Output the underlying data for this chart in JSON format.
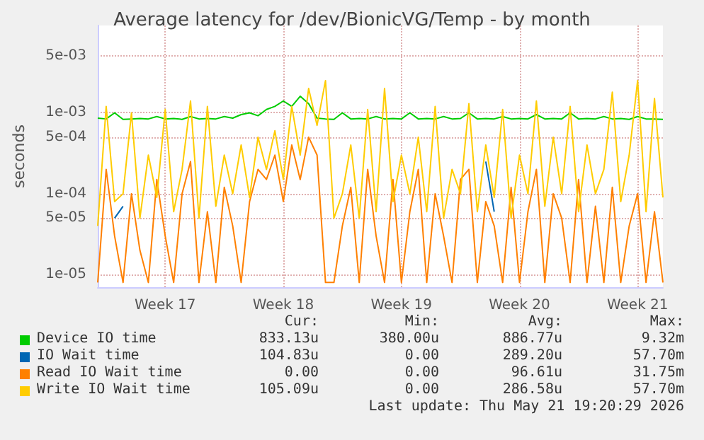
{
  "chart_data": {
    "type": "line",
    "title": "Average latency for /dev/BionicVG/Temp - by month",
    "ylabel": "seconds",
    "log": "y",
    "grid": true,
    "legend": "bottom",
    "marker": "none",
    "line_style": "solid",
    "categories": [
      null,
      null,
      null,
      null,
      null,
      null,
      null,
      null,
      "Week 17",
      null,
      null,
      null,
      null,
      null,
      null,
      null,
      null,
      null,
      null,
      null,
      null,
      null,
      "Week 18",
      null,
      null,
      null,
      null,
      null,
      null,
      null,
      null,
      null,
      null,
      null,
      null,
      null,
      "Week 19",
      null,
      null,
      null,
      null,
      null,
      null,
      null,
      null,
      null,
      null,
      null,
      null,
      null,
      "Week 20",
      null,
      null,
      null,
      null,
      null,
      null,
      null,
      null,
      null,
      null,
      null,
      null,
      null,
      "Week 21",
      null,
      null,
      null
    ],
    "ylim": [
      7e-06,
      0.012
    ],
    "yticks": [
      {
        "value": 1e-05,
        "label": "1e-05"
      },
      {
        "value": 5e-05,
        "label": "5e-05"
      },
      {
        "value": 0.0001,
        "label": "1e-04"
      },
      {
        "value": 0.0005,
        "label": "5e-04"
      },
      {
        "value": 0.001,
        "label": "1e-03"
      },
      {
        "value": 0.005,
        "label": "5e-03"
      }
    ],
    "series": [
      {
        "name": "Device IO time",
        "color": "#00cc00",
        "values": [
          0.00086,
          0.00084,
          0.001,
          0.00083,
          0.00084,
          0.00085,
          0.00084,
          0.0009,
          0.00084,
          0.00085,
          0.00083,
          0.0009,
          0.00084,
          0.00085,
          0.00084,
          0.0009,
          0.00086,
          0.00095,
          0.001,
          0.00092,
          0.0011,
          0.0012,
          0.0014,
          0.0012,
          0.0016,
          0.0013,
          0.00086,
          0.00084,
          0.00083,
          0.001,
          0.00084,
          0.00085,
          0.00084,
          0.0009,
          0.00084,
          0.00085,
          0.00084,
          0.001,
          0.00084,
          0.00085,
          0.00084,
          0.0009,
          0.00084,
          0.00085,
          0.001,
          0.00084,
          0.00085,
          0.00084,
          0.0009,
          0.00084,
          0.00085,
          0.00084,
          0.00095,
          0.00084,
          0.00085,
          0.00084,
          0.001,
          0.00084,
          0.00085,
          0.00084,
          0.0009,
          0.00084,
          0.00085,
          0.00083,
          0.0009,
          0.00084,
          0.00084,
          0.00083
        ]
      },
      {
        "name": "IO Wait time",
        "color": "#0066b3",
        "values": [
          null,
          null,
          5e-05,
          7e-05,
          null,
          null,
          null,
          null,
          null,
          null,
          null,
          null,
          null,
          null,
          null,
          null,
          null,
          null,
          null,
          null,
          null,
          null,
          null,
          null,
          null,
          null,
          null,
          null,
          null,
          null,
          null,
          null,
          null,
          null,
          null,
          null,
          null,
          null,
          null,
          null,
          null,
          null,
          null,
          null,
          null,
          null,
          0.00025,
          6e-05,
          null,
          null,
          null,
          null,
          null,
          null,
          null,
          null,
          null,
          null,
          null,
          null,
          null,
          null,
          null,
          null,
          null,
          null,
          null,
          null
        ]
      },
      {
        "name": "Read IO Wait time",
        "color": "#ff8000",
        "values": [
          8e-06,
          0.0002,
          3e-05,
          8e-06,
          0.0001,
          2e-05,
          8e-06,
          0.00015,
          3e-05,
          8e-06,
          0.0001,
          0.00025,
          8e-06,
          6e-05,
          8e-06,
          0.00012,
          4e-05,
          8e-06,
          8e-05,
          0.0002,
          0.00015,
          0.0003,
          8e-05,
          0.0004,
          0.00015,
          0.0005,
          0.0003,
          8e-06,
          8e-06,
          4e-05,
          0.00012,
          8e-06,
          0.0002,
          3e-05,
          8e-06,
          0.00015,
          8e-06,
          6e-05,
          0.0002,
          8e-06,
          0.0001,
          3e-05,
          8e-06,
          0.00015,
          0.0002,
          8e-06,
          8e-05,
          4e-05,
          8e-06,
          0.00012,
          8e-06,
          6e-05,
          0.0002,
          8e-06,
          0.0001,
          5e-05,
          8e-06,
          0.00015,
          8e-06,
          7e-05,
          8e-06,
          0.00012,
          8e-06,
          4e-05,
          0.0001,
          8e-06,
          6e-05,
          8e-06
        ]
      },
      {
        "name": "Write IO Wait time",
        "color": "#ffcc00",
        "values": [
          4e-05,
          0.0012,
          8e-05,
          0.0001,
          0.001,
          5e-05,
          0.0003,
          9e-05,
          0.0011,
          6e-05,
          0.0002,
          0.0014,
          5e-05,
          0.0012,
          7e-05,
          0.0003,
          0.0001,
          0.0004,
          9e-05,
          0.0005,
          0.0002,
          0.0006,
          0.00015,
          0.0012,
          0.0003,
          0.002,
          0.0007,
          0.0025,
          5e-05,
          0.0001,
          0.0004,
          5e-05,
          0.0011,
          6e-05,
          0.002,
          8e-05,
          0.0003,
          0.0001,
          0.0005,
          6e-05,
          0.0012,
          5e-05,
          0.0002,
          0.0001,
          0.0013,
          6e-05,
          0.0004,
          9e-05,
          0.0011,
          5e-05,
          0.0003,
          0.0001,
          0.0014,
          7e-05,
          0.0005,
          0.0001,
          0.0012,
          6e-05,
          0.0004,
          0.0001,
          0.0002,
          0.0018,
          8e-05,
          0.0003,
          0.0025,
          6e-05,
          0.0015,
          9e-05
        ]
      }
    ],
    "annotations": [
      "Cur:",
      "Min:",
      "Avg:",
      "Max:",
      "833.13u",
      "380.00u",
      "886.77u",
      "9.32m",
      "104.83u",
      "0.00",
      "289.20u",
      "57.70m",
      "0.00",
      "0.00",
      "96.61u",
      "31.75m",
      "105.09u",
      "0.00",
      "286.58u",
      "57.70m",
      "Last update: Thu May 21 19:20:29 2026"
    ]
  }
}
